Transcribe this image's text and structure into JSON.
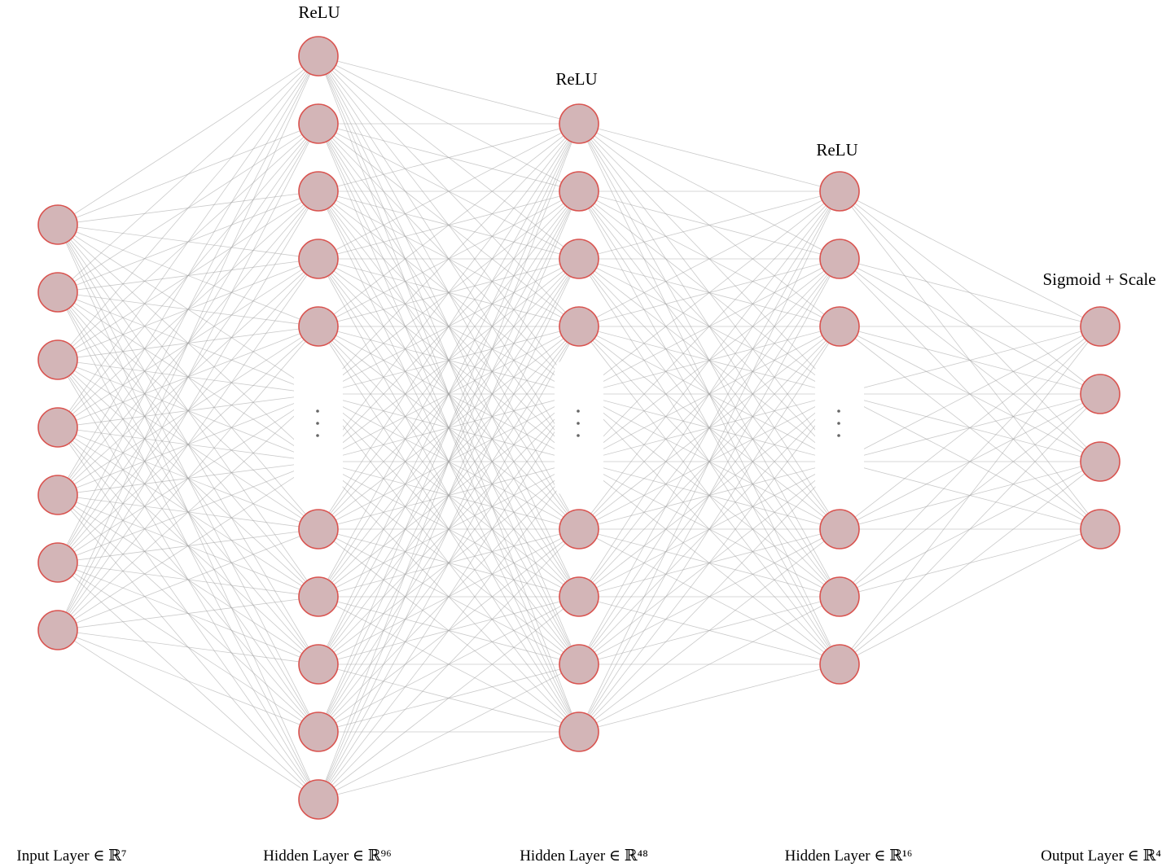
{
  "diagram": {
    "title": "",
    "node_fill": "#d3b5b7",
    "node_stroke": "#d9534f",
    "edge_color": "#9e9e9e",
    "layers": [
      {
        "label": "Input Layer ∈ ℝ⁷",
        "activation": "",
        "size": 7,
        "shown_top": 7,
        "shown_bottom": 0,
        "ellipsis": false
      },
      {
        "label": "Hidden Layer ∈ ℝ⁹⁶",
        "activation": "ReLU",
        "size": 96,
        "shown_top": 5,
        "shown_bottom": 5,
        "ellipsis": true
      },
      {
        "label": "Hidden Layer ∈ ℝ⁴⁸",
        "activation": "ReLU",
        "size": 48,
        "shown_top": 4,
        "shown_bottom": 4,
        "ellipsis": true
      },
      {
        "label": "Hidden Layer ∈ ℝ¹⁶",
        "activation": "ReLU",
        "size": 16,
        "shown_top": 3,
        "shown_bottom": 3,
        "ellipsis": true
      },
      {
        "label": "Output Layer ∈ ℝ⁴",
        "activation": "Sigmoid + Scale",
        "size": 4,
        "shown_top": 4,
        "shown_bottom": 0,
        "ellipsis": false
      }
    ]
  }
}
